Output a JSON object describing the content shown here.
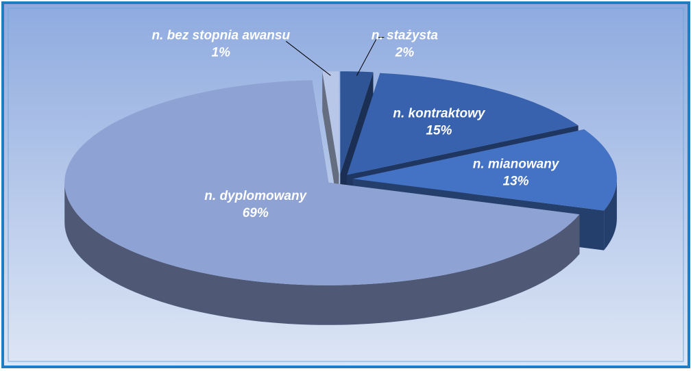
{
  "chart_data": {
    "type": "pie",
    "categories": [
      "n. stażysta",
      "n. kontraktowy",
      "n. mianowany",
      "n. dyplomowany",
      "n. bez stopnia awansu"
    ],
    "values": [
      2,
      15,
      13,
      69,
      1
    ],
    "value_labels": [
      "2%",
      "15%",
      "13%",
      "69%",
      "1%"
    ],
    "colors": [
      "#2f5597",
      "#3862ae",
      "#4472c4",
      "#8fa2d4",
      "#b8c6e8"
    ]
  }
}
